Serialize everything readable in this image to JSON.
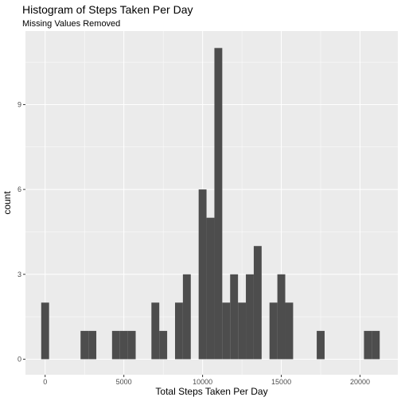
{
  "chart_data": {
    "type": "bar",
    "title": "Histogram of Steps Taken Per Day",
    "subtitle": "Missing Values Removed",
    "xlabel": "Total Steps Taken Per Day",
    "ylabel": "count",
    "bin_width": 500,
    "xlim": [
      -1250,
      22400
    ],
    "ylim": [
      -0.55,
      11.6
    ],
    "x_ticks": [
      0,
      5000,
      10000,
      15000,
      20000
    ],
    "y_ticks": [
      0,
      3,
      6,
      9
    ],
    "grid": true,
    "colors": {
      "panel": "#ebebeb",
      "grid_major": "#ffffff",
      "bar": "#4d4d4d",
      "tick_label": "#4d4d4d"
    },
    "bins": [
      {
        "center": 0,
        "count": 2
      },
      {
        "center": 2500,
        "count": 1
      },
      {
        "center": 3000,
        "count": 1
      },
      {
        "center": 4500,
        "count": 1
      },
      {
        "center": 5000,
        "count": 1
      },
      {
        "center": 5500,
        "count": 1
      },
      {
        "center": 7000,
        "count": 2
      },
      {
        "center": 7500,
        "count": 1
      },
      {
        "center": 8500,
        "count": 2
      },
      {
        "center": 9000,
        "count": 3
      },
      {
        "center": 10000,
        "count": 6
      },
      {
        "center": 10500,
        "count": 5
      },
      {
        "center": 11000,
        "count": 11
      },
      {
        "center": 11500,
        "count": 2
      },
      {
        "center": 12000,
        "count": 3
      },
      {
        "center": 12500,
        "count": 2
      },
      {
        "center": 13000,
        "count": 3
      },
      {
        "center": 13500,
        "count": 4
      },
      {
        "center": 14500,
        "count": 2
      },
      {
        "center": 15000,
        "count": 3
      },
      {
        "center": 15500,
        "count": 2
      },
      {
        "center": 17500,
        "count": 1
      },
      {
        "center": 20500,
        "count": 1
      },
      {
        "center": 21000,
        "count": 1
      }
    ]
  }
}
